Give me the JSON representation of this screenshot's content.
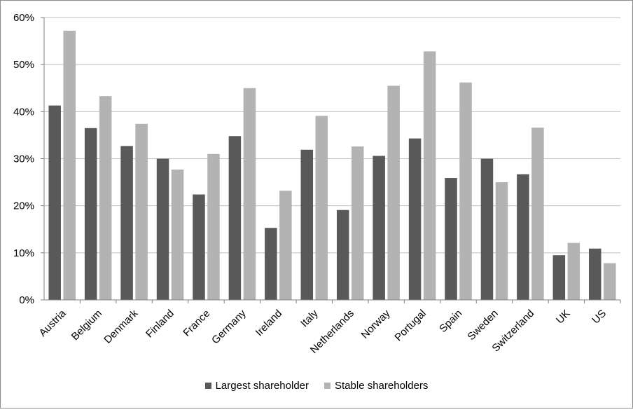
{
  "chart_data": {
    "type": "bar",
    "title": "",
    "xlabel": "",
    "ylabel": "",
    "categories": [
      "Austria",
      "Belgium",
      "Denmark",
      "Finland",
      "France",
      "Germany",
      "Ireland",
      "Italy",
      "Netherlands",
      "Norway",
      "Portugal",
      "Spain",
      "Sweden",
      "Switzerland",
      "UK",
      "US"
    ],
    "series": [
      {
        "name": "Largest shareholder",
        "color": "#595959",
        "values": [
          41.3,
          36.5,
          32.7,
          30.0,
          22.4,
          34.8,
          15.3,
          31.9,
          19.1,
          30.6,
          34.3,
          25.9,
          30.0,
          26.7,
          9.5,
          10.9
        ]
      },
      {
        "name": "Stable shareholders",
        "color": "#b3b3b3",
        "values": [
          57.2,
          43.3,
          37.4,
          27.7,
          31.0,
          45.0,
          23.2,
          39.1,
          32.6,
          45.5,
          52.8,
          46.2,
          25.0,
          36.6,
          12.1,
          7.8
        ]
      }
    ],
    "ylim": [
      0,
      60
    ],
    "yticks": [
      "0%",
      "10%",
      "20%",
      "30%",
      "40%",
      "50%",
      "60%"
    ],
    "ytick_values": [
      0,
      10,
      20,
      30,
      40,
      50,
      60
    ],
    "grid": true,
    "legend_position": "bottom"
  }
}
